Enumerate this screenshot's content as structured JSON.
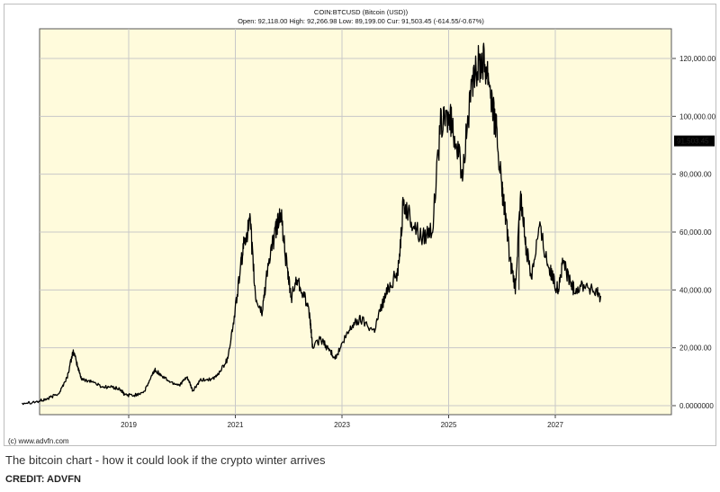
{
  "header": {
    "symbol_line": "COIN:BTCUSD (Bitcoin (USD))",
    "stats_line": "Open: 92,118.00 High: 92,266.98 Low: 89,199.00 Cur: 91,503.45 (-614.55/-0.67%)"
  },
  "chart_data": {
    "type": "line",
    "title": "COIN:BTCUSD (Bitcoin (USD))",
    "xlabel": "",
    "ylabel": "",
    "x_ticks": [
      "2019",
      "2021",
      "2023",
      "2025",
      "2027"
    ],
    "y_ticks": [
      "0.0000000",
      "20,000.00",
      "40,000.00",
      "60,000.00",
      "80,000.00",
      "100,000.00",
      "120,000.00"
    ],
    "ylim": [
      0,
      130000
    ],
    "xlim": [
      2017.0,
      2028.8
    ],
    "current_value_label": "91,503.45",
    "current_value": 91503.45,
    "grid": true,
    "colors": {
      "plot_background": "#fffbdc",
      "line": "#000000",
      "grid": "#c8c8c8",
      "current_value_box": "#000000"
    },
    "series": [
      {
        "values": [
          [
            2017.0,
            1000
          ],
          [
            2017.3,
            1400
          ],
          [
            2017.5,
            2500
          ],
          [
            2017.7,
            4500
          ],
          [
            2017.85,
            10000
          ],
          [
            2017.96,
            19000
          ],
          [
            2018.05,
            13000
          ],
          [
            2018.12,
            9000
          ],
          [
            2018.3,
            8500
          ],
          [
            2018.5,
            6500
          ],
          [
            2018.7,
            6400
          ],
          [
            2018.85,
            5500
          ],
          [
            2018.92,
            3800
          ],
          [
            2019.1,
            3500
          ],
          [
            2019.3,
            5000
          ],
          [
            2019.45,
            11000
          ],
          [
            2019.5,
            12500
          ],
          [
            2019.6,
            10500
          ],
          [
            2019.8,
            8000
          ],
          [
            2019.95,
            7200
          ],
          [
            2020.1,
            9800
          ],
          [
            2020.2,
            5000
          ],
          [
            2020.35,
            8800
          ],
          [
            2020.6,
            9300
          ],
          [
            2020.7,
            11500
          ],
          [
            2020.85,
            16000
          ],
          [
            2020.97,
            29000
          ],
          [
            2021.1,
            48000
          ],
          [
            2021.18,
            58000
          ],
          [
            2021.28,
            63000
          ],
          [
            2021.38,
            37000
          ],
          [
            2021.5,
            32000
          ],
          [
            2021.6,
            47000
          ],
          [
            2021.75,
            60000
          ],
          [
            2021.85,
            67000
          ],
          [
            2021.97,
            47000
          ],
          [
            2022.05,
            37000
          ],
          [
            2022.15,
            44000
          ],
          [
            2022.3,
            38000
          ],
          [
            2022.4,
            30000
          ],
          [
            2022.45,
            20000
          ],
          [
            2022.6,
            23000
          ],
          [
            2022.75,
            19500
          ],
          [
            2022.88,
            16500
          ],
          [
            2023.05,
            23000
          ],
          [
            2023.2,
            28000
          ],
          [
            2023.35,
            30000
          ],
          [
            2023.6,
            26000
          ],
          [
            2023.75,
            35000
          ],
          [
            2023.9,
            42000
          ],
          [
            2024.05,
            46000
          ],
          [
            2024.15,
            70000
          ],
          [
            2024.3,
            64000
          ],
          [
            2024.5,
            58000
          ],
          [
            2024.7,
            62000
          ],
          [
            2024.85,
            97000
          ],
          [
            2025.0,
            100000
          ],
          [
            2025.1,
            95000
          ],
          [
            2025.25,
            80000
          ],
          [
            2025.4,
            105000
          ],
          [
            2025.55,
            118000
          ],
          [
            2025.65,
            120000
          ],
          [
            2025.75,
            115000
          ],
          [
            2025.85,
            100000
          ],
          [
            2025.9,
            95000
          ],
          [
            2026.0,
            74000
          ],
          [
            2026.05,
            68000
          ],
          [
            2026.15,
            50000
          ],
          [
            2026.25,
            40000
          ],
          [
            2026.35,
            72000
          ],
          [
            2026.45,
            55000
          ],
          [
            2026.55,
            45000
          ],
          [
            2026.7,
            62000
          ],
          [
            2026.85,
            50000
          ],
          [
            2026.95,
            44000
          ],
          [
            2027.05,
            40000
          ],
          [
            2027.15,
            50000
          ],
          [
            2027.25,
            44000
          ],
          [
            2027.35,
            40000
          ],
          [
            2027.55,
            42000
          ],
          [
            2027.75,
            39000
          ],
          [
            2027.85,
            38000
          ]
        ]
      }
    ]
  },
  "site_credit": "(c) www.advfn.com",
  "caption": "The bitcoin chart - how it could look if the crypto winter arrives",
  "credit": "CREDIT: ADVFN"
}
